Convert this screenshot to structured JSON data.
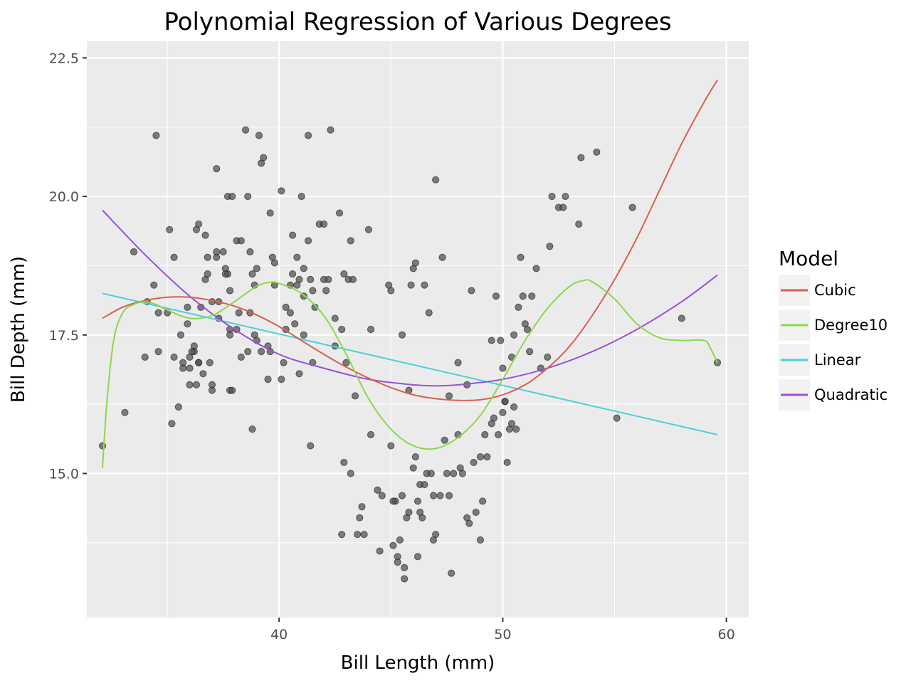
{
  "chart_data": {
    "type": "scatter",
    "title": "Polynomial Regression of Various Degrees",
    "xlabel": "Bill Length (mm)",
    "ylabel": "Bill Depth (mm)",
    "xlim": [
      31.4,
      61.0
    ],
    "ylim": [
      12.4,
      22.8
    ],
    "x_ticks": [
      40,
      50,
      60
    ],
    "x_tick_labels": [
      "40",
      "50",
      "60"
    ],
    "y_ticks": [
      15.0,
      17.5,
      20.0,
      22.5
    ],
    "y_tick_labels": [
      "15.0",
      "17.5",
      "20.0",
      "22.5"
    ],
    "grid": true,
    "legend_position": "right",
    "legend": {
      "title": "Model",
      "entries": [
        {
          "name": "Cubic",
          "color": "#d95f50"
        },
        {
          "name": "Degree10",
          "color": "#8fd64e"
        },
        {
          "name": "Linear",
          "color": "#4fcfdb"
        },
        {
          "name": "Quadratic",
          "color": "#9a50d8"
        }
      ]
    },
    "points": {
      "color": "#4d4d4d",
      "x": [
        32.1,
        33.1,
        33.5,
        34.0,
        34.1,
        34.4,
        34.5,
        34.6,
        35.0,
        35.1,
        35.2,
        35.3,
        35.5,
        35.6,
        35.7,
        35.7,
        35.9,
        36.0,
        36.0,
        36.2,
        36.2,
        36.3,
        36.4,
        36.4,
        36.5,
        36.6,
        36.7,
        36.7,
        36.8,
        36.9,
        37.0,
        37.0,
        37.2,
        37.2,
        37.3,
        37.3,
        37.5,
        37.6,
        37.7,
        37.7,
        37.8,
        37.8,
        37.8,
        37.9,
        38.1,
        38.1,
        38.2,
        38.3,
        38.5,
        38.6,
        38.6,
        38.7,
        38.8,
        38.9,
        39.0,
        39.1,
        39.2,
        39.3,
        39.5,
        39.6,
        39.7,
        39.8,
        40.1,
        40.2,
        40.3,
        40.5,
        40.6,
        40.7,
        40.8,
        40.9,
        41.0,
        41.1,
        41.1,
        41.3,
        41.4,
        41.5,
        41.6,
        41.8,
        42.0,
        42.2,
        42.3,
        42.5,
        42.7,
        42.8,
        42.9,
        43.1,
        43.2,
        43.3,
        43.5,
        43.6,
        43.8,
        44.1,
        44.4,
        44.5,
        45.0,
        45.1,
        45.2,
        45.3,
        45.4,
        45.5,
        45.6,
        45.7,
        45.8,
        46.0,
        46.1,
        46.2,
        46.3,
        46.4,
        46.5,
        46.6,
        46.8,
        46.9,
        47.0,
        47.2,
        47.5,
        47.6,
        47.8,
        48.1,
        48.2,
        48.4,
        48.5,
        48.7,
        48.8,
        49.0,
        49.1,
        49.2,
        49.3,
        49.5,
        49.6,
        49.8,
        50.0,
        50.1,
        50.2,
        50.3,
        50.4,
        50.5,
        50.6,
        50.7,
        50.8,
        50.9,
        51.0,
        51.1,
        51.3,
        51.5,
        51.7,
        52.0,
        52.1,
        52.2,
        52.5,
        52.7,
        52.8,
        53.4,
        53.5,
        54.2,
        55.1,
        55.8,
        58.0,
        59.6,
        42.0,
        45.0,
        46.0,
        44.0,
        47.0,
        43.0,
        48.0,
        46.5,
        45.5,
        44.9,
        46.1,
        47.3,
        48.6,
        49.9,
        50.4,
        45.9,
        46.7,
        47.6,
        48.4,
        49.0,
        43.7,
        44.6,
        45.1,
        46.2,
        45.3,
        47.7,
        43.2,
        42.8,
        45.6,
        46.9,
        47.4,
        48.0,
        46.3,
        45.8,
        49.5,
        50.5,
        51.2,
        50.0,
        50.1,
        49.7,
        42.5,
        41.3,
        39.6,
        38.3,
        37.2,
        36.3,
        40.9,
        40.3,
        39.2,
        41.5,
        40.6,
        38.7,
        37.6,
        36.4,
        39.8,
        40.5,
        41.1,
        40.8,
        39.5,
        38.9,
        37.0,
        36.8,
        35.9,
        36.1,
        37.9,
        38.8,
        41.4,
        40.1,
        39.0,
        42.1,
        42.9,
        44.1,
        43.4,
        34.6,
        35.3,
        36.0,
        37.8
      ],
      "y": [
        15.5,
        16.1,
        19.0,
        17.1,
        18.1,
        18.4,
        21.1,
        17.2,
        17.9,
        19.4,
        15.9,
        18.9,
        16.2,
        17.5,
        17.0,
        16.9,
        18.0,
        16.6,
        17.1,
        17.3,
        17.2,
        16.6,
        19.5,
        17.0,
        18.0,
        16.8,
        18.5,
        19.3,
        18.6,
        17.0,
        18.1,
        16.5,
        18.9,
        20.5,
        17.8,
        18.1,
        19.0,
        18.7,
        18.6,
        20.0,
        18.3,
        17.6,
        16.5,
        20.0,
        19.2,
        17.6,
        17.9,
        17.1,
        21.2,
        17.2,
        20.0,
        19.0,
        18.6,
        17.5,
        18.7,
        21.1,
        20.6,
        20.7,
        16.7,
        17.2,
        18.9,
        18.4,
        20.1,
        17.0,
        18.0,
        17.9,
        18.6,
        17.7,
        18.9,
        16.8,
        20.0,
        18.2,
        17.5,
        21.1,
        18.5,
        18.3,
        18.0,
        19.5,
        19.5,
        18.5,
        21.2,
        17.3,
        19.7,
        17.6,
        15.2,
        18.5,
        19.2,
        18.5,
        13.9,
        14.2,
        13.9,
        15.7,
        14.7,
        13.6,
        15.5,
        13.7,
        14.5,
        13.5,
        13.8,
        14.6,
        13.1,
        14.2,
        14.3,
        15.1,
        15.3,
        14.5,
        14.8,
        14.2,
        14.8,
        15.0,
        15.0,
        14.6,
        13.9,
        14.6,
        15.0,
        14.6,
        15.0,
        15.1,
        15.0,
        14.2,
        14.1,
        15.2,
        14.3,
        15.3,
        14.5,
        15.7,
        15.3,
        15.9,
        16.0,
        15.7,
        16.1,
        16.3,
        15.2,
        15.8,
        15.9,
        17.5,
        15.8,
        18.0,
        18.9,
        18.2,
        17.7,
        17.6,
        18.2,
        18.7,
        16.9,
        17.1,
        19.1,
        20.0,
        19.8,
        19.8,
        20.0,
        19.5,
        20.7,
        20.8,
        16.0,
        19.8,
        17.8,
        17.0,
        18.5,
        18.3,
        18.7,
        19.4,
        20.3,
        17.0,
        17.0,
        18.4,
        17.5,
        18.4,
        18.8,
        18.9,
        18.3,
        17.4,
        17.1,
        18.4,
        17.9,
        16.4,
        16.6,
        13.8,
        14.4,
        14.6,
        14.5,
        13.5,
        13.4,
        13.2,
        15.0,
        13.9,
        13.3,
        13.8,
        15.6,
        15.7,
        14.3,
        16.5,
        17.4,
        16.2,
        17.2,
        16.9,
        16.3,
        18.2,
        17.8,
        19.2,
        19.7,
        19.2,
        19.0,
        19.4,
        18.5,
        17.6,
        17.2,
        17.0,
        19.3,
        17.9,
        18.6,
        17.0,
        18.8,
        18.4,
        18.7,
        18.4,
        17.3,
        18.4,
        16.6,
        18.9,
        17.7,
        17.2,
        16.5,
        15.8,
        15.5,
        16.7,
        17.4,
        18.3,
        18.6,
        17.6,
        16.4,
        17.9,
        17.1,
        16.9,
        17.5
      ],
      "_note": "estimated individual observations"
    },
    "series": [
      {
        "name": "Linear",
        "color": "#4fcfdb",
        "x": [
          32.1,
          59.6
        ],
        "y": [
          18.25,
          15.7
        ]
      },
      {
        "name": "Quadratic",
        "color": "#9a50d8",
        "x": [
          32.1,
          34,
          36,
          38,
          40,
          42,
          44,
          46,
          47,
          48,
          50,
          52,
          54,
          56,
          58,
          59.6
        ],
        "y": [
          19.75,
          18.95,
          18.2,
          17.6,
          17.15,
          16.9,
          16.7,
          16.6,
          16.58,
          16.6,
          16.7,
          16.9,
          17.2,
          17.6,
          18.1,
          18.58
        ]
      },
      {
        "name": "Cubic",
        "color": "#d95f50",
        "x": [
          32.1,
          33,
          34,
          35,
          36,
          37,
          38,
          39,
          40,
          41,
          42,
          43,
          44,
          45,
          46,
          47,
          48,
          49,
          50,
          51,
          52,
          53,
          54,
          55,
          56,
          57,
          58,
          59,
          59.6
        ],
        "y": [
          17.8,
          18.0,
          18.12,
          18.18,
          18.18,
          18.12,
          18.02,
          17.86,
          17.65,
          17.4,
          17.15,
          16.92,
          16.72,
          16.55,
          16.42,
          16.35,
          16.32,
          16.33,
          16.42,
          16.6,
          16.9,
          17.3,
          17.85,
          18.5,
          19.25,
          20.1,
          20.95,
          21.7,
          22.1
        ]
      },
      {
        "name": "Degree10",
        "color": "#8fd64e",
        "x": [
          32.1,
          32.3,
          32.6,
          33.0,
          33.5,
          34.0,
          34.5,
          35.0,
          36.0,
          37.0,
          38.0,
          39.0,
          39.6,
          40.0,
          41.0,
          42.0,
          43.0,
          44.0,
          45.0,
          46.0,
          47.0,
          48.0,
          49.0,
          50.0,
          51.0,
          52.0,
          53.0,
          53.6,
          54.0,
          55.0,
          56.0,
          57.0,
          58.0,
          59.0,
          59.3,
          59.6
        ],
        "y": [
          15.1,
          16.3,
          17.4,
          17.9,
          18.05,
          18.1,
          18.05,
          17.95,
          17.8,
          17.85,
          18.1,
          18.38,
          18.45,
          18.43,
          18.25,
          17.85,
          17.15,
          16.35,
          15.8,
          15.5,
          15.45,
          15.65,
          16.05,
          16.7,
          17.4,
          17.98,
          18.38,
          18.48,
          18.46,
          18.15,
          17.7,
          17.45,
          17.4,
          17.4,
          17.25,
          17.0
        ]
      }
    ]
  }
}
